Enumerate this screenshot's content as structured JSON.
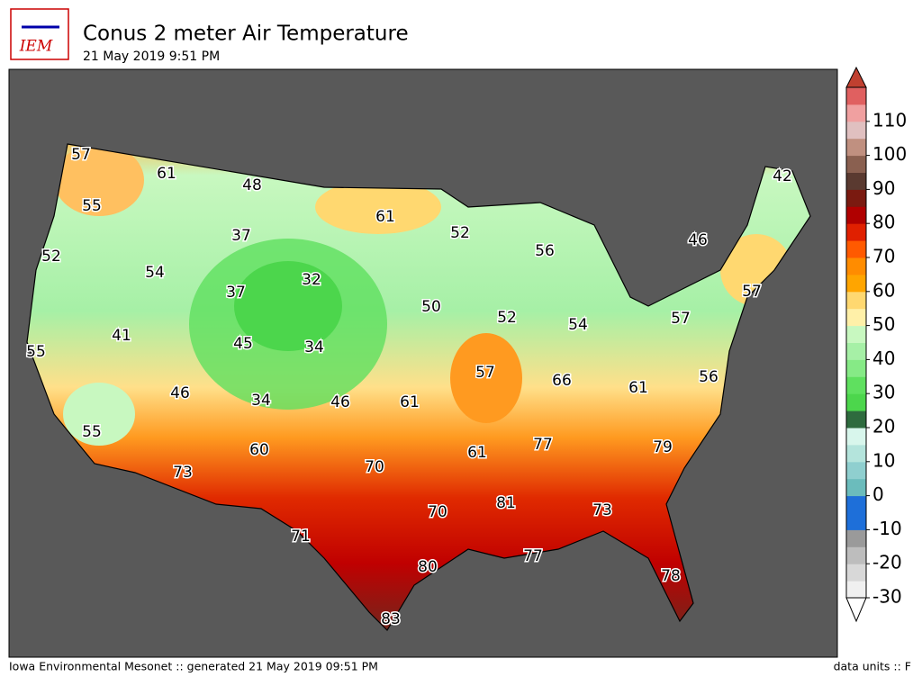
{
  "header": {
    "logo": "IEM",
    "title": "Conus 2 meter Air Temperature",
    "subtitle": "21 May 2019 9:51 PM"
  },
  "footer": {
    "left": "Iowa Environmental Mesonet :: generated 21 May 2019 09:51 PM",
    "right": "data units :: F"
  },
  "contour_labels": [
    57,
    61,
    48,
    61,
    52,
    56,
    42,
    46,
    55,
    52,
    54,
    37,
    37,
    32,
    50,
    52,
    54,
    57,
    57,
    41,
    45,
    34,
    55,
    57,
    66,
    61,
    56,
    46,
    34,
    46,
    61,
    55,
    60,
    77,
    79,
    61,
    73,
    70,
    81,
    70,
    73,
    71,
    77,
    80,
    78,
    83
  ],
  "colorbar": {
    "range": [
      -30,
      120
    ],
    "ticks": [
      -30,
      -20,
      -10,
      0,
      10,
      20,
      30,
      40,
      50,
      60,
      70,
      80,
      90,
      100,
      110
    ],
    "colors": [
      "#f0f0f0",
      "#d8d8d8",
      "#bdbdbd",
      "#9a9a9a",
      "#1e6fd9",
      "#1e6fd9",
      "#6bbcbc",
      "#8fcfcf",
      "#b4e4dc",
      "#d8f6ec",
      "#2e6b3e",
      "#4cd64c",
      "#5fe05f",
      "#86ea86",
      "#a6f0a6",
      "#c8f8c0",
      "#fff0a8",
      "#ffd870",
      "#ffa500",
      "#ff8c00",
      "#ff5a00",
      "#e02000",
      "#b00000",
      "#7a1a10",
      "#5a3a30",
      "#8a6050",
      "#c09080",
      "#e0c0c0",
      "#f0a0a0",
      "#e06060"
    ]
  }
}
